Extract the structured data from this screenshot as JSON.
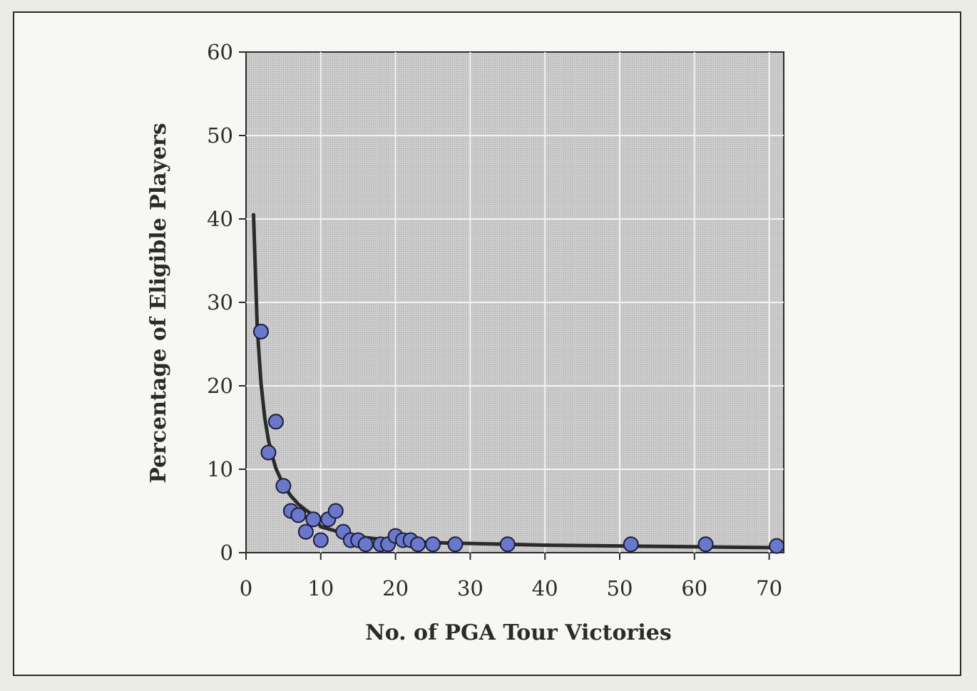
{
  "chart_data": {
    "type": "scatter",
    "title": "",
    "xlabel": "No. of PGA Tour Victories",
    "ylabel": "Percentage of Eligible Players",
    "xlim": [
      0,
      72
    ],
    "ylim": [
      0,
      60
    ],
    "xticks": [
      0,
      10,
      20,
      30,
      40,
      50,
      60,
      70
    ],
    "yticks": [
      0,
      10,
      20,
      30,
      40,
      50,
      60
    ],
    "grid": true,
    "legend": "none",
    "colors": {
      "plot_background": "#c9c9c9",
      "grid": "#f2f2f2",
      "point_fill": "#6a78cc",
      "point_stroke": "#1c1c3a",
      "curve": "#2b2b2b",
      "axis": "#2b2b2b"
    },
    "points": [
      {
        "x": 2,
        "y": 26.5
      },
      {
        "x": 3,
        "y": 12
      },
      {
        "x": 4,
        "y": 15.7
      },
      {
        "x": 5,
        "y": 8
      },
      {
        "x": 6,
        "y": 5
      },
      {
        "x": 7,
        "y": 4.5
      },
      {
        "x": 8,
        "y": 2.5
      },
      {
        "x": 9,
        "y": 4
      },
      {
        "x": 10,
        "y": 1.5
      },
      {
        "x": 11,
        "y": 4
      },
      {
        "x": 12,
        "y": 5
      },
      {
        "x": 13,
        "y": 2.5
      },
      {
        "x": 14,
        "y": 1.5
      },
      {
        "x": 15,
        "y": 1.5
      },
      {
        "x": 16,
        "y": 1
      },
      {
        "x": 18,
        "y": 1
      },
      {
        "x": 19,
        "y": 1
      },
      {
        "x": 20,
        "y": 2
      },
      {
        "x": 21,
        "y": 1.5
      },
      {
        "x": 22,
        "y": 1.5
      },
      {
        "x": 23,
        "y": 1
      },
      {
        "x": 25,
        "y": 1
      },
      {
        "x": 28,
        "y": 1
      },
      {
        "x": 35,
        "y": 1
      },
      {
        "x": 51.5,
        "y": 1
      },
      {
        "x": 61.5,
        "y": 1
      },
      {
        "x": 71,
        "y": 0.8
      }
    ],
    "fit_curve": {
      "x": [
        1,
        1.5,
        2,
        2.5,
        3,
        3.5,
        4,
        5,
        6,
        7,
        8,
        9,
        10,
        12,
        14,
        16,
        18,
        20,
        25,
        30,
        35,
        40,
        50,
        60,
        71
      ],
      "y": [
        40.5,
        27,
        20.3,
        16.2,
        13.5,
        11.6,
        10.1,
        8.1,
        6.8,
        5.8,
        5.1,
        4.5,
        3.1,
        2.6,
        2.1,
        1.8,
        1.6,
        1.4,
        1.2,
        1.1,
        1.0,
        0.9,
        0.8,
        0.7,
        0.6
      ]
    }
  }
}
